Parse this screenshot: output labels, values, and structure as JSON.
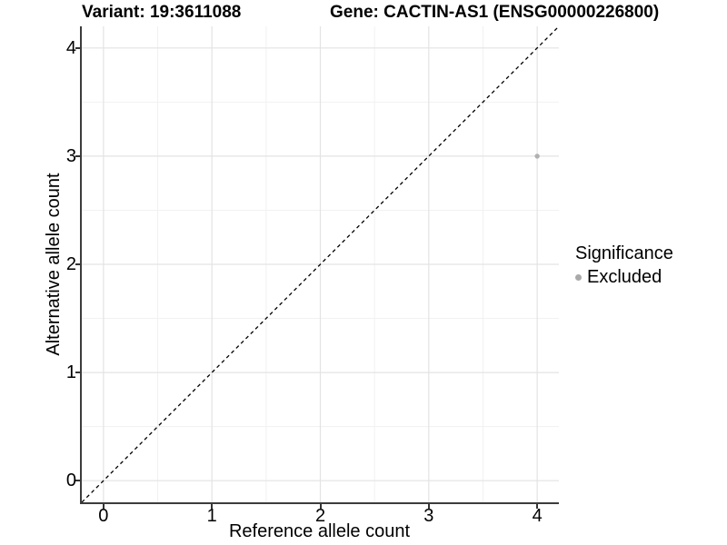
{
  "chart_data": {
    "type": "scatter",
    "title_left": "Variant: 19:3611088",
    "title_right": "Gene: CACTIN-AS1 (ENSG00000226800)",
    "xlabel": "Reference allele count",
    "ylabel": "Alternative allele count",
    "xlim": [
      -0.2,
      4.2
    ],
    "ylim": [
      -0.2,
      4.2
    ],
    "xticks": [
      0,
      1,
      2,
      3,
      4
    ],
    "yticks": [
      0,
      1,
      2,
      3,
      4
    ],
    "x_minor": [
      0.5,
      1.5,
      2.5,
      3.5
    ],
    "y_minor": [
      0.5,
      1.5,
      2.5,
      3.5
    ],
    "grid": true,
    "points": [
      {
        "x": 4,
        "y": 3,
        "series": "Excluded"
      }
    ],
    "reference_line": {
      "slope": 1,
      "intercept": 0,
      "style": "dashed"
    },
    "legend": {
      "position": "right",
      "title": "Significance",
      "items": [
        {
          "label": "Excluded",
          "color": "#a9a9a9"
        }
      ]
    },
    "colors": {
      "background": "#ffffff",
      "grid_major": "#e3e3e3",
      "grid_minor": "#f1f1f1",
      "axis_line": "#3c3c3c",
      "tick_mark": "#333333",
      "point": "#b0b0b0",
      "reference_line": "#000000",
      "text": "#000000"
    }
  }
}
